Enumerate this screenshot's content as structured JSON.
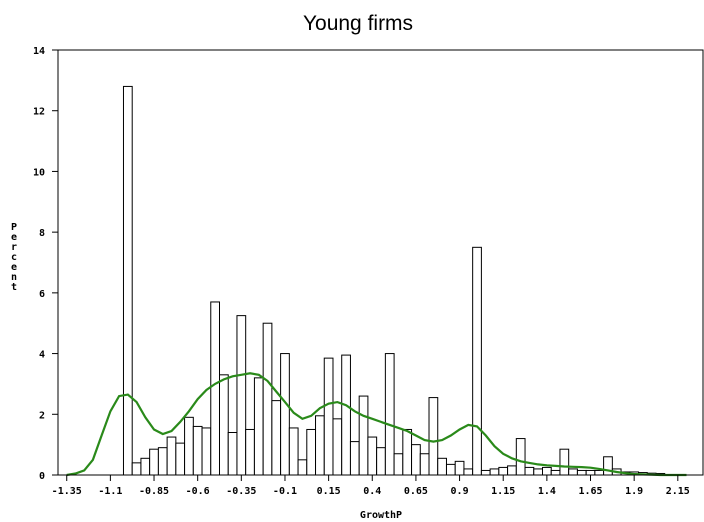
{
  "chart_data": {
    "type": "bar",
    "title": "Young firms",
    "xlabel": "GrowthP",
    "ylabel": "Percent",
    "xlim": [
      -1.4,
      2.3
    ],
    "ylim": [
      0,
      14
    ],
    "xticks": [
      "-1.35",
      "-1.1",
      "-0.85",
      "-0.6",
      "-0.35",
      "-0.1",
      "0.15",
      "0.4",
      "0.65",
      "0.9",
      "1.15",
      "1.4",
      "1.65",
      "1.9",
      "2.15"
    ],
    "yticks": [
      "0",
      "2",
      "4",
      "6",
      "8",
      "10",
      "12",
      "14"
    ],
    "bin_width": 0.05,
    "bins": [
      {
        "x": -1.0,
        "v": 12.8
      },
      {
        "x": -0.95,
        "v": 0.4
      },
      {
        "x": -0.9,
        "v": 0.55
      },
      {
        "x": -0.85,
        "v": 0.85
      },
      {
        "x": -0.8,
        "v": 0.9
      },
      {
        "x": -0.75,
        "v": 1.25
      },
      {
        "x": -0.7,
        "v": 1.05
      },
      {
        "x": -0.65,
        "v": 1.9
      },
      {
        "x": -0.6,
        "v": 1.6
      },
      {
        "x": -0.55,
        "v": 1.55
      },
      {
        "x": -0.5,
        "v": 5.7
      },
      {
        "x": -0.45,
        "v": 3.3
      },
      {
        "x": -0.4,
        "v": 1.4
      },
      {
        "x": -0.35,
        "v": 5.25
      },
      {
        "x": -0.3,
        "v": 1.5
      },
      {
        "x": -0.25,
        "v": 3.2
      },
      {
        "x": -0.2,
        "v": 5.0
      },
      {
        "x": -0.15,
        "v": 2.45
      },
      {
        "x": -0.1,
        "v": 4.0
      },
      {
        "x": -0.05,
        "v": 1.55
      },
      {
        "x": 0.0,
        "v": 0.5
      },
      {
        "x": 0.05,
        "v": 1.5
      },
      {
        "x": 0.1,
        "v": 1.95
      },
      {
        "x": 0.15,
        "v": 3.85
      },
      {
        "x": 0.2,
        "v": 1.85
      },
      {
        "x": 0.25,
        "v": 3.95
      },
      {
        "x": 0.3,
        "v": 1.1
      },
      {
        "x": 0.35,
        "v": 2.6
      },
      {
        "x": 0.4,
        "v": 1.25
      },
      {
        "x": 0.45,
        "v": 0.9
      },
      {
        "x": 0.5,
        "v": 4.0
      },
      {
        "x": 0.55,
        "v": 0.7
      },
      {
        "x": 0.6,
        "v": 1.5
      },
      {
        "x": 0.65,
        "v": 1.0
      },
      {
        "x": 0.7,
        "v": 0.7
      },
      {
        "x": 0.75,
        "v": 2.55
      },
      {
        "x": 0.8,
        "v": 0.55
      },
      {
        "x": 0.85,
        "v": 0.35
      },
      {
        "x": 0.9,
        "v": 0.45
      },
      {
        "x": 0.95,
        "v": 0.2
      },
      {
        "x": 1.0,
        "v": 7.5
      },
      {
        "x": 1.05,
        "v": 0.15
      },
      {
        "x": 1.1,
        "v": 0.2
      },
      {
        "x": 1.15,
        "v": 0.25
      },
      {
        "x": 1.2,
        "v": 0.3
      },
      {
        "x": 1.25,
        "v": 1.2
      },
      {
        "x": 1.3,
        "v": 0.25
      },
      {
        "x": 1.35,
        "v": 0.2
      },
      {
        "x": 1.4,
        "v": 0.25
      },
      {
        "x": 1.45,
        "v": 0.15
      },
      {
        "x": 1.5,
        "v": 0.85
      },
      {
        "x": 1.55,
        "v": 0.2
      },
      {
        "x": 1.6,
        "v": 0.15
      },
      {
        "x": 1.65,
        "v": 0.15
      },
      {
        "x": 1.7,
        "v": 0.15
      },
      {
        "x": 1.75,
        "v": 0.6
      },
      {
        "x": 1.8,
        "v": 0.2
      },
      {
        "x": 1.85,
        "v": 0.1
      },
      {
        "x": 1.9,
        "v": 0.1
      },
      {
        "x": 1.95,
        "v": 0.08
      },
      {
        "x": 2.0,
        "v": 0.06
      },
      {
        "x": 2.05,
        "v": 0.05
      }
    ],
    "density_curve": {
      "color": "#2a8a1a",
      "points": [
        [
          -1.35,
          0.0
        ],
        [
          -1.3,
          0.05
        ],
        [
          -1.25,
          0.15
        ],
        [
          -1.2,
          0.5
        ],
        [
          -1.15,
          1.3
        ],
        [
          -1.1,
          2.1
        ],
        [
          -1.05,
          2.6
        ],
        [
          -1.0,
          2.65
        ],
        [
          -0.95,
          2.4
        ],
        [
          -0.9,
          1.9
        ],
        [
          -0.85,
          1.5
        ],
        [
          -0.8,
          1.35
        ],
        [
          -0.75,
          1.45
        ],
        [
          -0.7,
          1.75
        ],
        [
          -0.65,
          2.1
        ],
        [
          -0.6,
          2.5
        ],
        [
          -0.55,
          2.8
        ],
        [
          -0.5,
          3.0
        ],
        [
          -0.45,
          3.15
        ],
        [
          -0.4,
          3.25
        ],
        [
          -0.35,
          3.3
        ],
        [
          -0.3,
          3.35
        ],
        [
          -0.25,
          3.3
        ],
        [
          -0.2,
          3.1
        ],
        [
          -0.15,
          2.75
        ],
        [
          -0.1,
          2.4
        ],
        [
          -0.05,
          2.05
        ],
        [
          0.0,
          1.85
        ],
        [
          0.05,
          1.95
        ],
        [
          0.1,
          2.2
        ],
        [
          0.15,
          2.35
        ],
        [
          0.2,
          2.4
        ],
        [
          0.25,
          2.3
        ],
        [
          0.3,
          2.1
        ],
        [
          0.35,
          1.95
        ],
        [
          0.4,
          1.85
        ],
        [
          0.45,
          1.75
        ],
        [
          0.5,
          1.65
        ],
        [
          0.55,
          1.55
        ],
        [
          0.6,
          1.45
        ],
        [
          0.65,
          1.3
        ],
        [
          0.7,
          1.15
        ],
        [
          0.75,
          1.1
        ],
        [
          0.8,
          1.15
        ],
        [
          0.85,
          1.3
        ],
        [
          0.9,
          1.5
        ],
        [
          0.95,
          1.65
        ],
        [
          1.0,
          1.6
        ],
        [
          1.05,
          1.3
        ],
        [
          1.1,
          0.95
        ],
        [
          1.15,
          0.7
        ],
        [
          1.2,
          0.55
        ],
        [
          1.25,
          0.45
        ],
        [
          1.3,
          0.4
        ],
        [
          1.35,
          0.35
        ],
        [
          1.4,
          0.32
        ],
        [
          1.45,
          0.3
        ],
        [
          1.5,
          0.28
        ],
        [
          1.55,
          0.27
        ],
        [
          1.6,
          0.26
        ],
        [
          1.65,
          0.24
        ],
        [
          1.7,
          0.2
        ],
        [
          1.75,
          0.15
        ],
        [
          1.8,
          0.1
        ],
        [
          1.85,
          0.06
        ],
        [
          1.9,
          0.03
        ],
        [
          1.95,
          0.02
        ],
        [
          2.0,
          0.01
        ],
        [
          2.05,
          0.0
        ],
        [
          2.2,
          0.0
        ]
      ]
    },
    "grid": false,
    "legend": "none"
  }
}
